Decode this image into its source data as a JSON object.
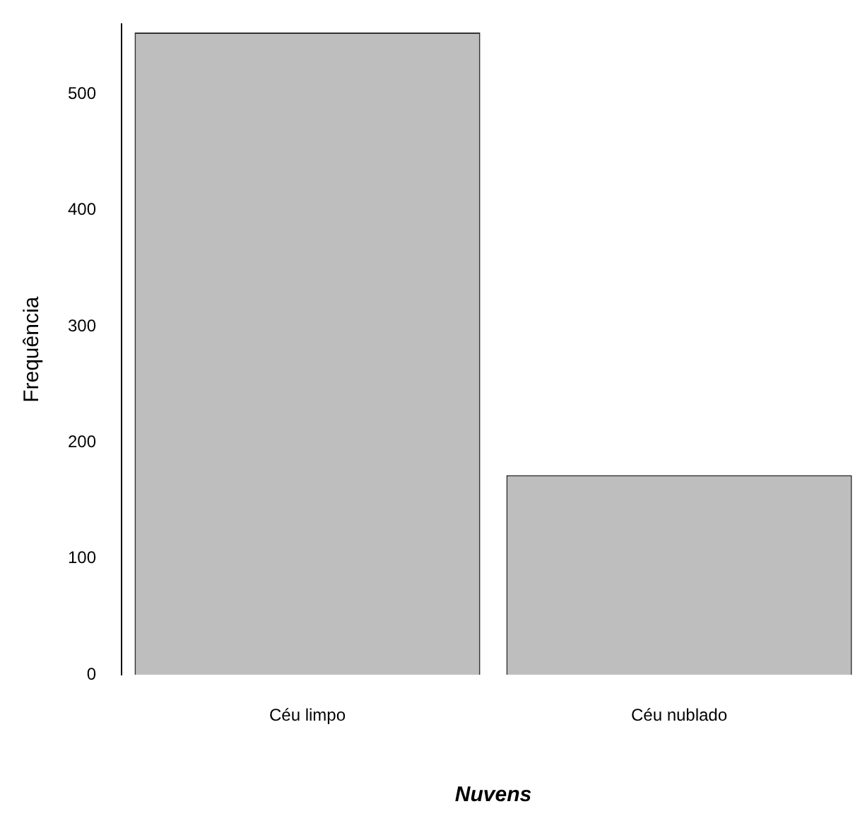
{
  "chart_data": {
    "type": "bar",
    "xlabel": "Nuvens",
    "ylabel": "Frequência",
    "categories": [
      "Céu limpo",
      "Céu nublado"
    ],
    "values": [
      553,
      172
    ],
    "color": "#bebebe",
    "ylim": [
      0,
      560
    ],
    "yticks": [
      0,
      100,
      200,
      300,
      400,
      500
    ],
    "grid": false,
    "legend": false
  }
}
